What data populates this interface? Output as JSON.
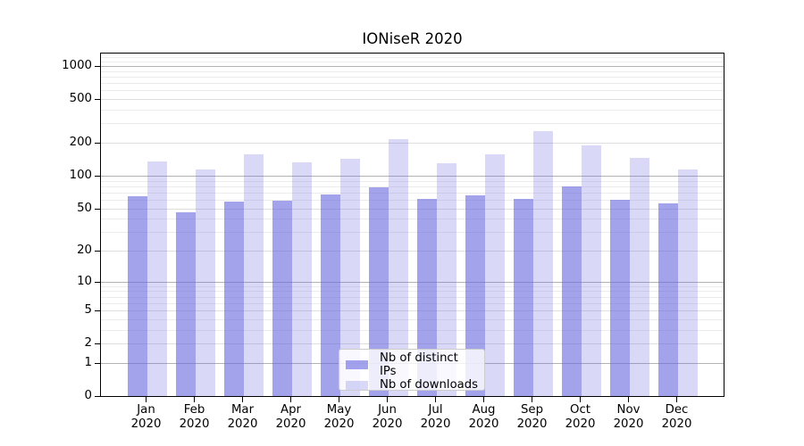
{
  "chart_data": {
    "type": "bar",
    "title": "IONiseR 2020",
    "x": {
      "months": [
        "Jan",
        "Feb",
        "Mar",
        "Apr",
        "May",
        "Jun",
        "Jul",
        "Aug",
        "Sep",
        "Oct",
        "Nov",
        "Dec"
      ],
      "year": "2020"
    },
    "series": [
      {
        "name": "Nb of distinct IPs",
        "color": "rgba(102,102,224,0.60)",
        "values": [
          65,
          46,
          58,
          59,
          67,
          78,
          61,
          66,
          61,
          80,
          60,
          56
        ]
      },
      {
        "name": "Nb of downloads",
        "color": "rgba(102,102,224,0.25)",
        "values": [
          136,
          115,
          158,
          133,
          142,
          215,
          131,
          156,
          255,
          188,
          146,
          114
        ]
      }
    ],
    "y_scale": "log1p",
    "ylim": [
      0,
      1300
    ],
    "y_ticks": [
      0,
      1,
      2,
      5,
      10,
      20,
      50,
      100,
      200,
      500,
      1000
    ],
    "grid": "both",
    "gridline_values": {
      "major": [
        1,
        10,
        100,
        1000
      ],
      "labeled_minor": [
        2,
        5,
        20,
        50,
        200,
        500
      ],
      "minor": [
        3,
        4,
        6,
        7,
        8,
        9,
        30,
        40,
        60,
        70,
        80,
        90,
        300,
        400,
        600,
        700,
        800,
        900,
        1100,
        1200
      ]
    },
    "legend_position": "lower-center",
    "colors": {
      "bar_distinct_ips": "rgba(102,102,224,0.60)",
      "bar_downloads": "rgba(102,102,224,0.25)",
      "grid_major": "#b3b3b3",
      "grid_labeled_minor": "#dedede",
      "grid_minor": "#ececec",
      "spine": "#000000",
      "text": "#000000"
    }
  }
}
